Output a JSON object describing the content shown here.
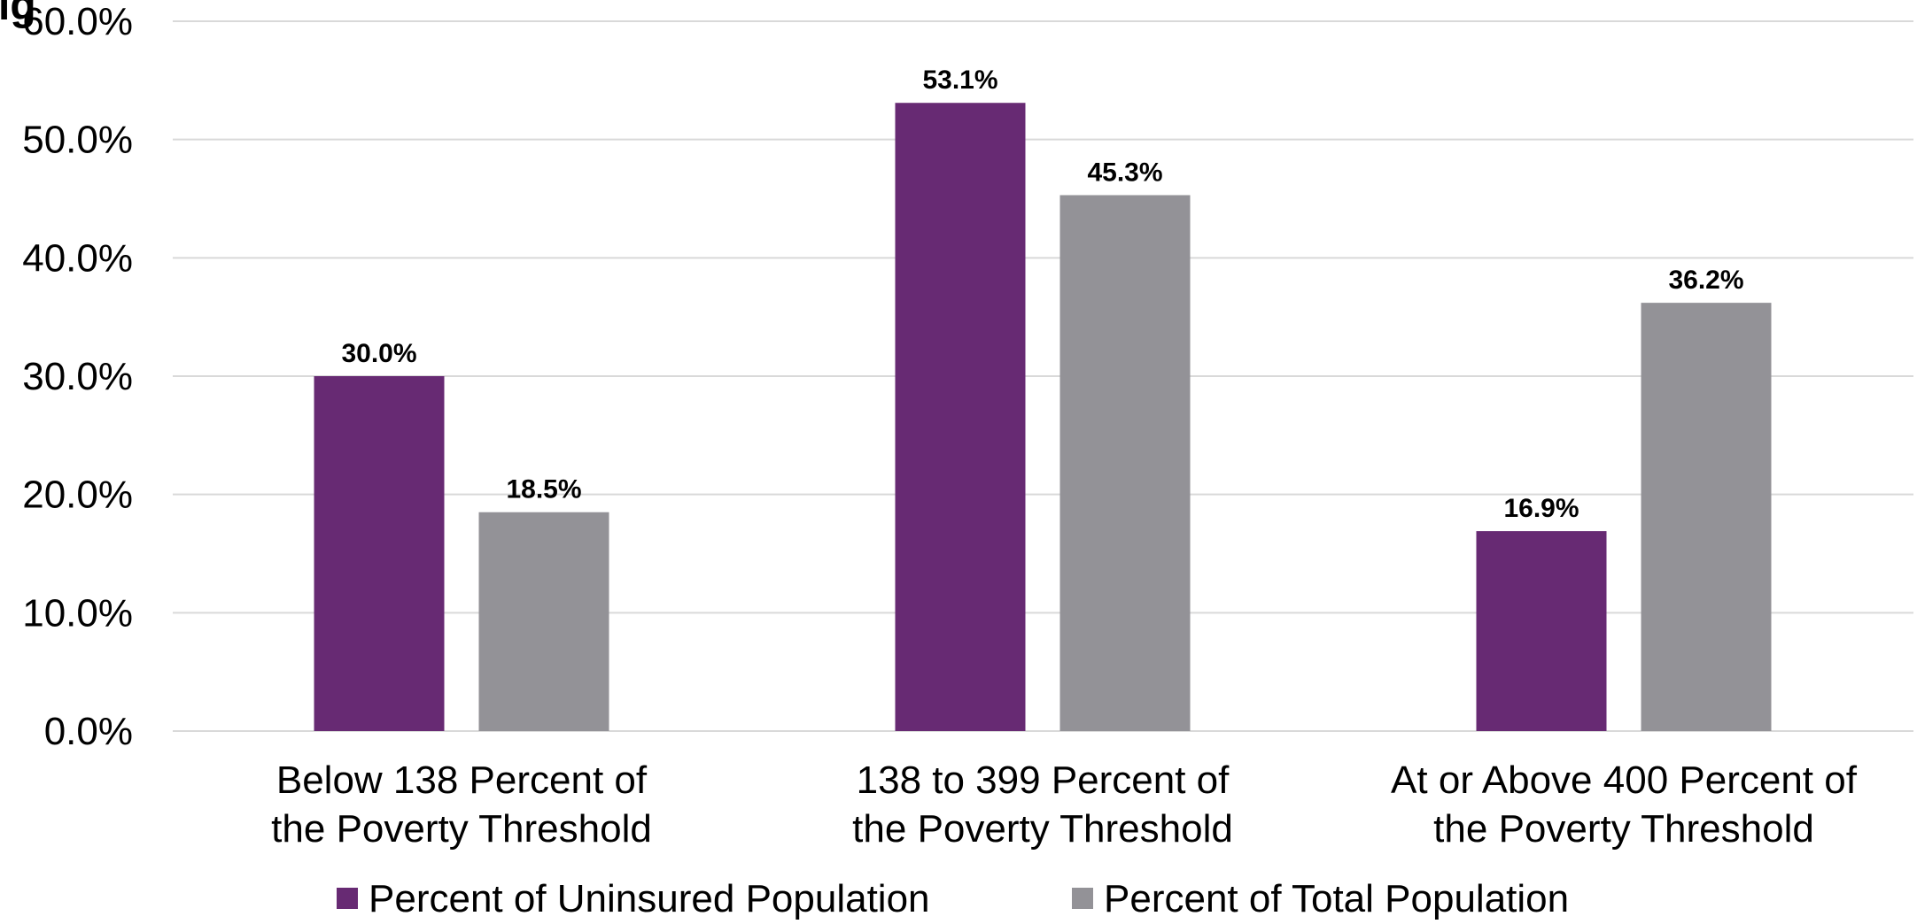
{
  "page": {
    "cut_title": "ig"
  },
  "chart_data": {
    "type": "bar",
    "categories": [
      [
        "Below 138 Percent of",
        "the Poverty Threshold"
      ],
      [
        "138 to 399 Percent of",
        "the Poverty Threshold"
      ],
      [
        "At or Above 400 Percent of",
        "the Poverty Threshold"
      ]
    ],
    "series": [
      {
        "name": "Percent of Uninsured Population",
        "values": [
          30.0,
          53.1,
          16.9
        ],
        "color": "#672a73"
      },
      {
        "name": "Percent of Total Population",
        "values": [
          18.5,
          45.3,
          36.2
        ],
        "color": "#939297"
      }
    ],
    "data_labels": [
      [
        "30.0%",
        "53.1%",
        "16.9%"
      ],
      [
        "18.5%",
        "45.3%",
        "36.2%"
      ]
    ],
    "ylim": [
      0,
      60
    ],
    "yticks": [
      0,
      10,
      20,
      30,
      40,
      50,
      60
    ],
    "ytick_labels": [
      "0.0%",
      "10.0%",
      "20.0%",
      "30.0%",
      "40.0%",
      "50.0%",
      "60.0%"
    ],
    "grid": true,
    "gridline_color": "#d9d9d9",
    "legend_placement": "bottom-center"
  }
}
